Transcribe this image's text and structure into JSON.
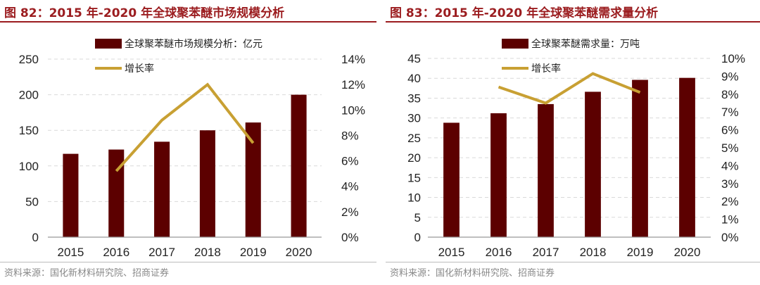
{
  "colors": {
    "bar": "#5c0000",
    "line": "#c8a033",
    "title": "#9b1c1f"
  },
  "chart_data": [
    {
      "type": "bar+line",
      "title": "图 82：2015 年-2020 年全球聚苯醚市场规模分析",
      "categories": [
        "2015",
        "2016",
        "2017",
        "2018",
        "2019",
        "2020"
      ],
      "series": [
        {
          "name": "全球聚苯醚市场规模分析：亿元",
          "type": "bar",
          "axis": "left",
          "values": [
            117,
            123,
            134,
            150,
            161,
            200
          ]
        },
        {
          "name": "增长率",
          "type": "line",
          "axis": "right",
          "values": [
            null,
            5.2,
            9.2,
            12.0,
            7.4,
            null
          ]
        }
      ],
      "ylim": [
        0,
        250
      ],
      "yticks": [
        "0",
        "50",
        "100",
        "150",
        "200",
        "250"
      ],
      "y2lim": [
        0,
        14
      ],
      "y2ticks": [
        "0%",
        "2%",
        "4%",
        "6%",
        "8%",
        "10%",
        "12%",
        "14%"
      ],
      "grid": true,
      "legend": "top-center",
      "source": "资料来源：国化新材料研究院、招商证券"
    },
    {
      "type": "bar+line",
      "title": "图 83：2015 年-2020 年全球聚苯醚需求量分析",
      "categories": [
        "2015",
        "2016",
        "2017",
        "2018",
        "2019",
        "2020"
      ],
      "series": [
        {
          "name": "全球聚苯醚需求量：万吨",
          "type": "bar",
          "axis": "left",
          "values": [
            28.8,
            31.2,
            33.5,
            36.6,
            39.6,
            40.1
          ]
        },
        {
          "name": "增长率",
          "type": "line",
          "axis": "right",
          "values": [
            null,
            8.4,
            7.5,
            9.15,
            8.1,
            null
          ]
        }
      ],
      "ylim": [
        0,
        45
      ],
      "yticks": [
        "0",
        "5",
        "10",
        "15",
        "20",
        "25",
        "30",
        "35",
        "40",
        "45"
      ],
      "y2lim": [
        0,
        10
      ],
      "y2ticks": [
        "0%",
        "1%",
        "2%",
        "3%",
        "4%",
        "5%",
        "6%",
        "7%",
        "8%",
        "9%",
        "10%"
      ],
      "grid": true,
      "legend": "top-center",
      "source": "资料来源：国化新材料研究院、招商证券"
    }
  ]
}
